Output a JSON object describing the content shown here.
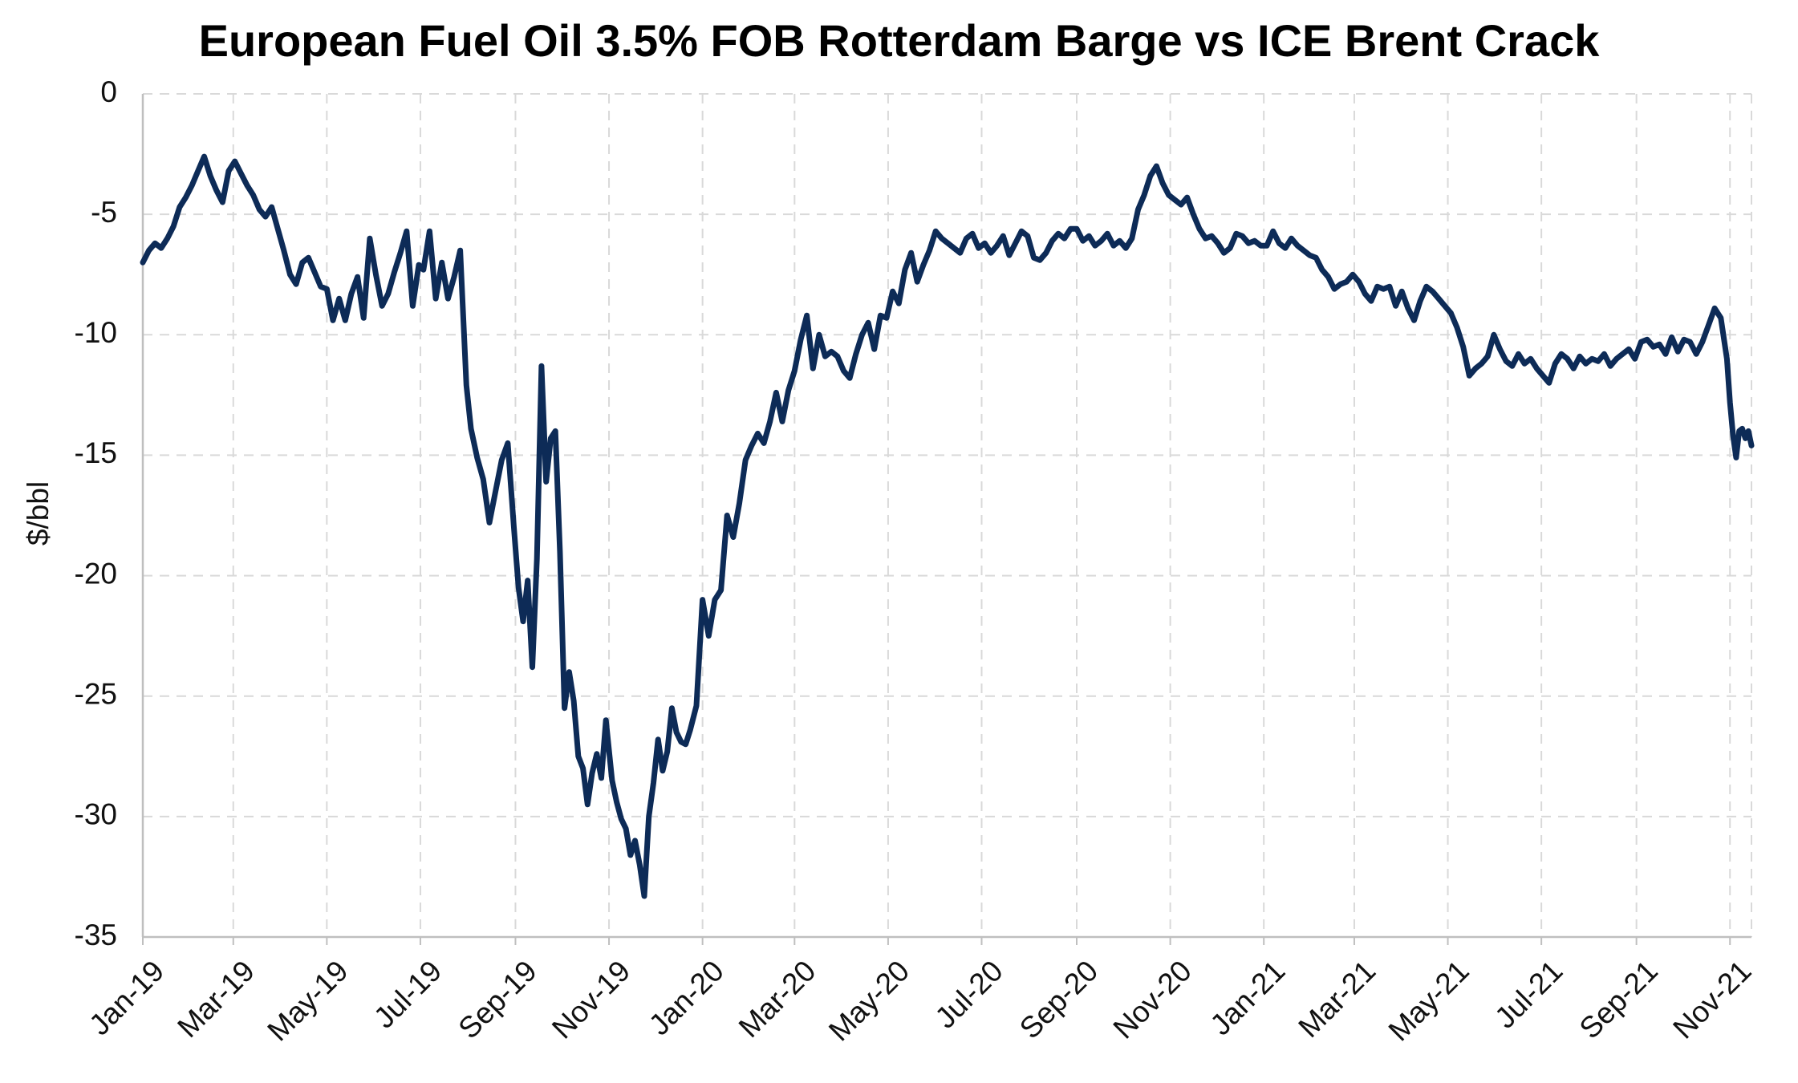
{
  "chart_data": {
    "type": "line",
    "title": "European Fuel Oil 3.5% FOB Rotterdam Barge vs ICE Brent Crack",
    "xlabel": "",
    "ylabel": "$/bbl",
    "ylim": [
      -35,
      0
    ],
    "yticks": [
      0,
      -5,
      -10,
      -15,
      -20,
      -25,
      -30,
      -35
    ],
    "xlim": [
      "2019-01-01",
      "2021-11-15"
    ],
    "xticks": [
      {
        "date": "2019-01-01",
        "label": "Jan-19"
      },
      {
        "date": "2019-03-01",
        "label": "Mar-19"
      },
      {
        "date": "2019-05-01",
        "label": "May-19"
      },
      {
        "date": "2019-07-01",
        "label": "Jul-19"
      },
      {
        "date": "2019-09-01",
        "label": "Sep-19"
      },
      {
        "date": "2019-11-01",
        "label": "Nov-19"
      },
      {
        "date": "2020-01-01",
        "label": "Jan-20"
      },
      {
        "date": "2020-03-01",
        "label": "Mar-20"
      },
      {
        "date": "2020-05-01",
        "label": "May-20"
      },
      {
        "date": "2020-07-01",
        "label": "Jul-20"
      },
      {
        "date": "2020-09-01",
        "label": "Sep-20"
      },
      {
        "date": "2020-11-01",
        "label": "Nov-20"
      },
      {
        "date": "2021-01-01",
        "label": "Jan-21"
      },
      {
        "date": "2021-03-01",
        "label": "Mar-21"
      },
      {
        "date": "2021-05-01",
        "label": "May-21"
      },
      {
        "date": "2021-07-01",
        "label": "Jul-21"
      },
      {
        "date": "2021-09-01",
        "label": "Sep-21"
      },
      {
        "date": "2021-11-01",
        "label": "Nov-21"
      }
    ],
    "grid": true,
    "legend": "none",
    "line_color": "#0d2b57",
    "series": [
      {
        "x": [
          "2019-01-01",
          "2019-01-05",
          "2019-01-09",
          "2019-01-13",
          "2019-01-17",
          "2019-01-21",
          "2019-01-25",
          "2019-01-29",
          "2019-02-02",
          "2019-02-06",
          "2019-02-10",
          "2019-02-14",
          "2019-02-18",
          "2019-02-22",
          "2019-02-26",
          "2019-03-02",
          "2019-03-06",
          "2019-03-10",
          "2019-03-14",
          "2019-03-18",
          "2019-03-22",
          "2019-03-26",
          "2019-03-30",
          "2019-04-03",
          "2019-04-07",
          "2019-04-11",
          "2019-04-15",
          "2019-04-19",
          "2019-04-23",
          "2019-04-27",
          "2019-05-01",
          "2019-05-05",
          "2019-05-09",
          "2019-05-13",
          "2019-05-17",
          "2019-05-21",
          "2019-05-25",
          "2019-05-29",
          "2019-06-02",
          "2019-06-06",
          "2019-06-10",
          "2019-06-14",
          "2019-06-18",
          "2019-06-22",
          "2019-06-26",
          "2019-06-30",
          "2019-07-03",
          "2019-07-07",
          "2019-07-11",
          "2019-07-15",
          "2019-07-19",
          "2019-07-23",
          "2019-07-27",
          "2019-07-31",
          "2019-08-03",
          "2019-08-07",
          "2019-08-11",
          "2019-08-15",
          "2019-08-19",
          "2019-08-23",
          "2019-08-27",
          "2019-08-31",
          "2019-09-03",
          "2019-09-06",
          "2019-09-09",
          "2019-09-12",
          "2019-09-15",
          "2019-09-18",
          "2019-09-21",
          "2019-09-24",
          "2019-09-27",
          "2019-09-30",
          "2019-10-03",
          "2019-10-06",
          "2019-10-09",
          "2019-10-12",
          "2019-10-15",
          "2019-10-18",
          "2019-10-21",
          "2019-10-24",
          "2019-10-27",
          "2019-10-30",
          "2019-11-03",
          "2019-11-06",
          "2019-11-09",
          "2019-11-12",
          "2019-11-15",
          "2019-11-18",
          "2019-11-21",
          "2019-11-24",
          "2019-11-27",
          "2019-11-30",
          "2019-12-03",
          "2019-12-06",
          "2019-12-09",
          "2019-12-12",
          "2019-12-15",
          "2019-12-18",
          "2019-12-21",
          "2019-12-24",
          "2019-12-28",
          "2020-01-01",
          "2020-01-05",
          "2020-01-09",
          "2020-01-13",
          "2020-01-17",
          "2020-01-21",
          "2020-01-25",
          "2020-01-29",
          "2020-02-02",
          "2020-02-06",
          "2020-02-10",
          "2020-02-14",
          "2020-02-18",
          "2020-02-22",
          "2020-02-26",
          "2020-03-01",
          "2020-03-05",
          "2020-03-09",
          "2020-03-13",
          "2020-03-17",
          "2020-03-21",
          "2020-03-25",
          "2020-03-29",
          "2020-04-02",
          "2020-04-06",
          "2020-04-10",
          "2020-04-14",
          "2020-04-18",
          "2020-04-22",
          "2020-04-26",
          "2020-04-30",
          "2020-05-04",
          "2020-05-08",
          "2020-05-12",
          "2020-05-16",
          "2020-05-20",
          "2020-05-24",
          "2020-05-28",
          "2020-06-01",
          "2020-06-05",
          "2020-06-09",
          "2020-06-13",
          "2020-06-17",
          "2020-06-21",
          "2020-06-25",
          "2020-06-29",
          "2020-07-03",
          "2020-07-07",
          "2020-07-11",
          "2020-07-15",
          "2020-07-19",
          "2020-07-23",
          "2020-07-27",
          "2020-07-31",
          "2020-08-04",
          "2020-08-08",
          "2020-08-12",
          "2020-08-16",
          "2020-08-20",
          "2020-08-24",
          "2020-08-28",
          "2020-09-01",
          "2020-09-05",
          "2020-09-09",
          "2020-09-13",
          "2020-09-17",
          "2020-09-21",
          "2020-09-25",
          "2020-09-29",
          "2020-10-03",
          "2020-10-07",
          "2020-10-11",
          "2020-10-15",
          "2020-10-19",
          "2020-10-23",
          "2020-10-27",
          "2020-10-31",
          "2020-11-04",
          "2020-11-08",
          "2020-11-12",
          "2020-11-16",
          "2020-11-20",
          "2020-11-24",
          "2020-11-28",
          "2020-12-02",
          "2020-12-06",
          "2020-12-10",
          "2020-12-14",
          "2020-12-18",
          "2020-12-22",
          "2020-12-26",
          "2020-12-30",
          "2021-01-03",
          "2021-01-07",
          "2021-01-11",
          "2021-01-15",
          "2021-01-19",
          "2021-01-23",
          "2021-01-27",
          "2021-01-31",
          "2021-02-04",
          "2021-02-08",
          "2021-02-12",
          "2021-02-16",
          "2021-02-20",
          "2021-02-24",
          "2021-02-28",
          "2021-03-04",
          "2021-03-08",
          "2021-03-12",
          "2021-03-16",
          "2021-03-20",
          "2021-03-24",
          "2021-03-28",
          "2021-04-01",
          "2021-04-05",
          "2021-04-09",
          "2021-04-13",
          "2021-04-17",
          "2021-04-21",
          "2021-04-25",
          "2021-04-29",
          "2021-05-03",
          "2021-05-07",
          "2021-05-11",
          "2021-05-15",
          "2021-05-19",
          "2021-05-23",
          "2021-05-27",
          "2021-05-31",
          "2021-06-04",
          "2021-06-08",
          "2021-06-12",
          "2021-06-16",
          "2021-06-20",
          "2021-06-24",
          "2021-06-28",
          "2021-07-02",
          "2021-07-06",
          "2021-07-10",
          "2021-07-14",
          "2021-07-18",
          "2021-07-22",
          "2021-07-26",
          "2021-07-30",
          "2021-08-03",
          "2021-08-07",
          "2021-08-11",
          "2021-08-15",
          "2021-08-19",
          "2021-08-23",
          "2021-08-27",
          "2021-08-31",
          "2021-09-04",
          "2021-09-08",
          "2021-09-12",
          "2021-09-16",
          "2021-09-20",
          "2021-09-24",
          "2021-09-28",
          "2021-10-02",
          "2021-10-06",
          "2021-10-10",
          "2021-10-14",
          "2021-10-18",
          "2021-10-22",
          "2021-10-26",
          "2021-10-30",
          "2021-11-01",
          "2021-11-03",
          "2021-11-05",
          "2021-11-07",
          "2021-11-09",
          "2021-11-11",
          "2021-11-13",
          "2021-11-15"
        ],
        "values": [
          -7.0,
          -6.5,
          -6.2,
          -6.4,
          -6.0,
          -5.5,
          -4.7,
          -4.3,
          -3.8,
          -3.2,
          -2.6,
          -3.4,
          -4.0,
          -4.5,
          -3.2,
          -2.8,
          -3.3,
          -3.8,
          -4.2,
          -4.8,
          -5.1,
          -4.7,
          -5.6,
          -6.5,
          -7.5,
          -7.9,
          -7.0,
          -6.8,
          -7.4,
          -8.0,
          -8.1,
          -9.4,
          -8.5,
          -9.4,
          -8.3,
          -7.6,
          -9.3,
          -6.0,
          -7.5,
          -8.8,
          -8.3,
          -7.4,
          -6.6,
          -5.7,
          -8.8,
          -7.1,
          -7.3,
          -5.7,
          -8.5,
          -7.0,
          -8.5,
          -7.6,
          -6.5,
          -12.1,
          -13.9,
          -15.1,
          -16.0,
          -17.8,
          -16.5,
          -15.2,
          -14.5,
          -18.0,
          -20.5,
          -21.9,
          -20.2,
          -23.8,
          -19.3,
          -11.3,
          -16.1,
          -14.3,
          -14.0,
          -19.0,
          -25.5,
          -24.0,
          -25.2,
          -27.5,
          -28.0,
          -29.5,
          -28.2,
          -27.4,
          -28.4,
          -26.0,
          -28.5,
          -29.4,
          -30.1,
          -30.5,
          -31.6,
          -31.0,
          -32.0,
          -33.3,
          -30.0,
          -28.6,
          -26.8,
          -28.1,
          -27.3,
          -25.5,
          -26.5,
          -26.9,
          -27.0,
          -26.4,
          -25.4,
          -21.0,
          -22.5,
          -21.0,
          -20.6,
          -17.5,
          -18.4,
          -17.0,
          -15.2,
          -14.6,
          -14.1,
          -14.5,
          -13.6,
          -12.4,
          -13.6,
          -12.3,
          -11.5,
          -10.2,
          -9.2,
          -11.4,
          -10.0,
          -10.9,
          -10.7,
          -10.9,
          -11.5,
          -11.8,
          -10.8,
          -10.0,
          -9.5,
          -10.6,
          -9.2,
          -9.3,
          -8.2,
          -8.7,
          -7.3,
          -6.6,
          -7.8,
          -7.1,
          -6.5,
          -5.7,
          -6.0,
          -6.2,
          -6.4,
          -6.6,
          -6.0,
          -5.8,
          -6.4,
          -6.2,
          -6.6,
          -6.3,
          -5.9,
          -6.7,
          -6.2,
          -5.7,
          -5.9,
          -6.8,
          -6.9,
          -6.6,
          -6.1,
          -5.8,
          -6.0,
          -5.6,
          -5.6,
          -6.1,
          -5.9,
          -6.3,
          -6.1,
          -5.8,
          -6.3,
          -6.1,
          -6.4,
          -6.0,
          -4.8,
          -4.2,
          -3.4,
          -3.0,
          -3.7,
          -4.2,
          -4.4,
          -4.6,
          -4.3,
          -5.0,
          -5.6,
          -6.0,
          -5.9,
          -6.2,
          -6.6,
          -6.4,
          -5.8,
          -5.9,
          -6.2,
          -6.1,
          -6.3,
          -6.3,
          -5.7,
          -6.2,
          -6.4,
          -6.0,
          -6.3,
          -6.5,
          -6.7,
          -6.8,
          -7.3,
          -7.6,
          -8.1,
          -7.9,
          -7.8,
          -7.5,
          -7.8,
          -8.3,
          -8.6,
          -8.0,
          -8.1,
          -8.0,
          -8.8,
          -8.2,
          -8.9,
          -9.4,
          -8.6,
          -8.0,
          -8.2,
          -8.5,
          -8.8,
          -9.1,
          -9.7,
          -10.5,
          -11.7,
          -11.4,
          -11.2,
          -10.9,
          -10.0,
          -10.6,
          -11.1,
          -11.3,
          -10.8,
          -11.2,
          -11.0,
          -11.4,
          -11.7,
          -12.0,
          -11.2,
          -10.8,
          -11.0,
          -11.4,
          -10.9,
          -11.2,
          -11.0,
          -11.1,
          -10.8,
          -11.3,
          -11.0,
          -10.8,
          -10.6,
          -11.0,
          -10.3,
          -10.2,
          -10.5,
          -10.4,
          -10.8,
          -10.1,
          -10.7,
          -10.2,
          -10.3,
          -10.8,
          -10.3,
          -9.6,
          -8.9,
          -9.3,
          -11.0,
          -12.8,
          -14.2,
          -15.1,
          -14.0,
          -13.9,
          -14.3,
          -14.0,
          -14.6
        ]
      }
    ]
  }
}
